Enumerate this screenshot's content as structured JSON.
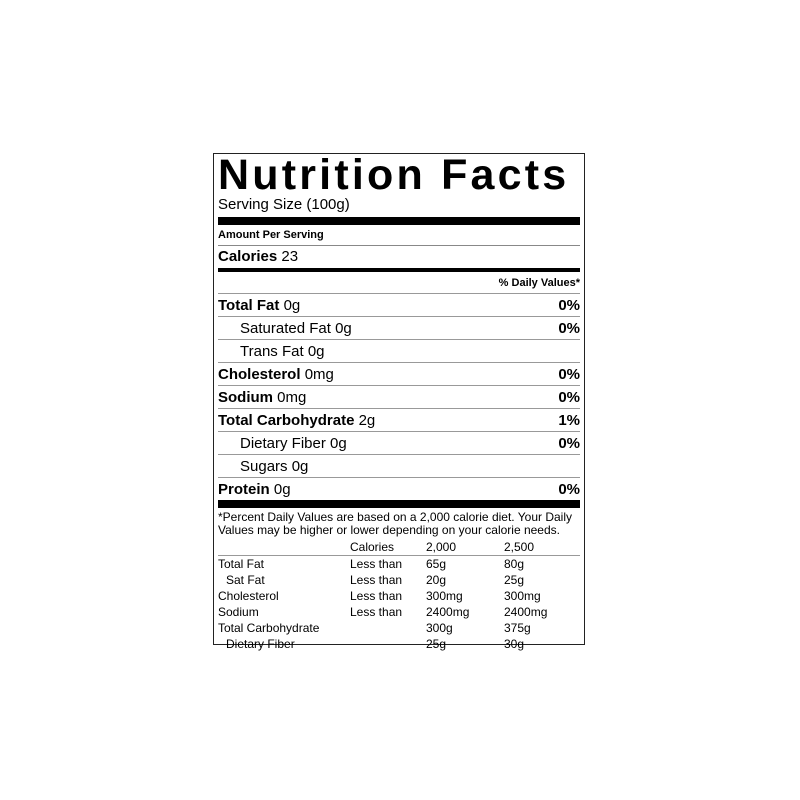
{
  "title": "Nutrition Facts",
  "serving_size": "Serving Size  (100g)",
  "amount_per_serving": "Amount Per Serving",
  "calories_label": "Calories",
  "calories_value": "23",
  "daily_values_header": "% Daily Values*",
  "nutrients": [
    {
      "label": "Total Fat",
      "amount": "0g",
      "dv": "0%"
    },
    {
      "label": "Saturated Fat",
      "amount": "0g",
      "dv": "0%"
    },
    {
      "label": "Trans Fat",
      "amount": "0g",
      "dv": ""
    },
    {
      "label": "Cholesterol",
      "amount": "0mg",
      "dv": "0%"
    },
    {
      "label": "Sodium",
      "amount": "0mg",
      "dv": "0%"
    },
    {
      "label": "Total Carbohydrate",
      "amount": "2g",
      "dv": "1%"
    },
    {
      "label": "Dietary Fiber",
      "amount": "0g",
      "dv": "0%"
    },
    {
      "label": "Sugars",
      "amount": "0g",
      "dv": ""
    },
    {
      "label": "Protein",
      "amount": "0g",
      "dv": "0%"
    }
  ],
  "footnote": "*Percent Daily Values are based on a 2,000 calorie diet. Your Daily Values may be higher or lower depending on your calorie needs.",
  "reference_table": {
    "header": [
      "",
      "Calories",
      "2,000",
      "2,500"
    ],
    "rows": [
      [
        "Total Fat",
        "Less than",
        "65g",
        "80g"
      ],
      [
        " Sat Fat",
        "Less than",
        "20g",
        "25g"
      ],
      [
        "Cholesterol",
        "Less than",
        "300mg",
        "300mg"
      ],
      [
        "Sodium",
        "Less than",
        "2400mg",
        "2400mg"
      ],
      [
        "Total Carbohydrate",
        "",
        "300g",
        "375g"
      ],
      [
        " Dietary Fiber",
        "",
        "25g",
        "30g"
      ]
    ]
  }
}
